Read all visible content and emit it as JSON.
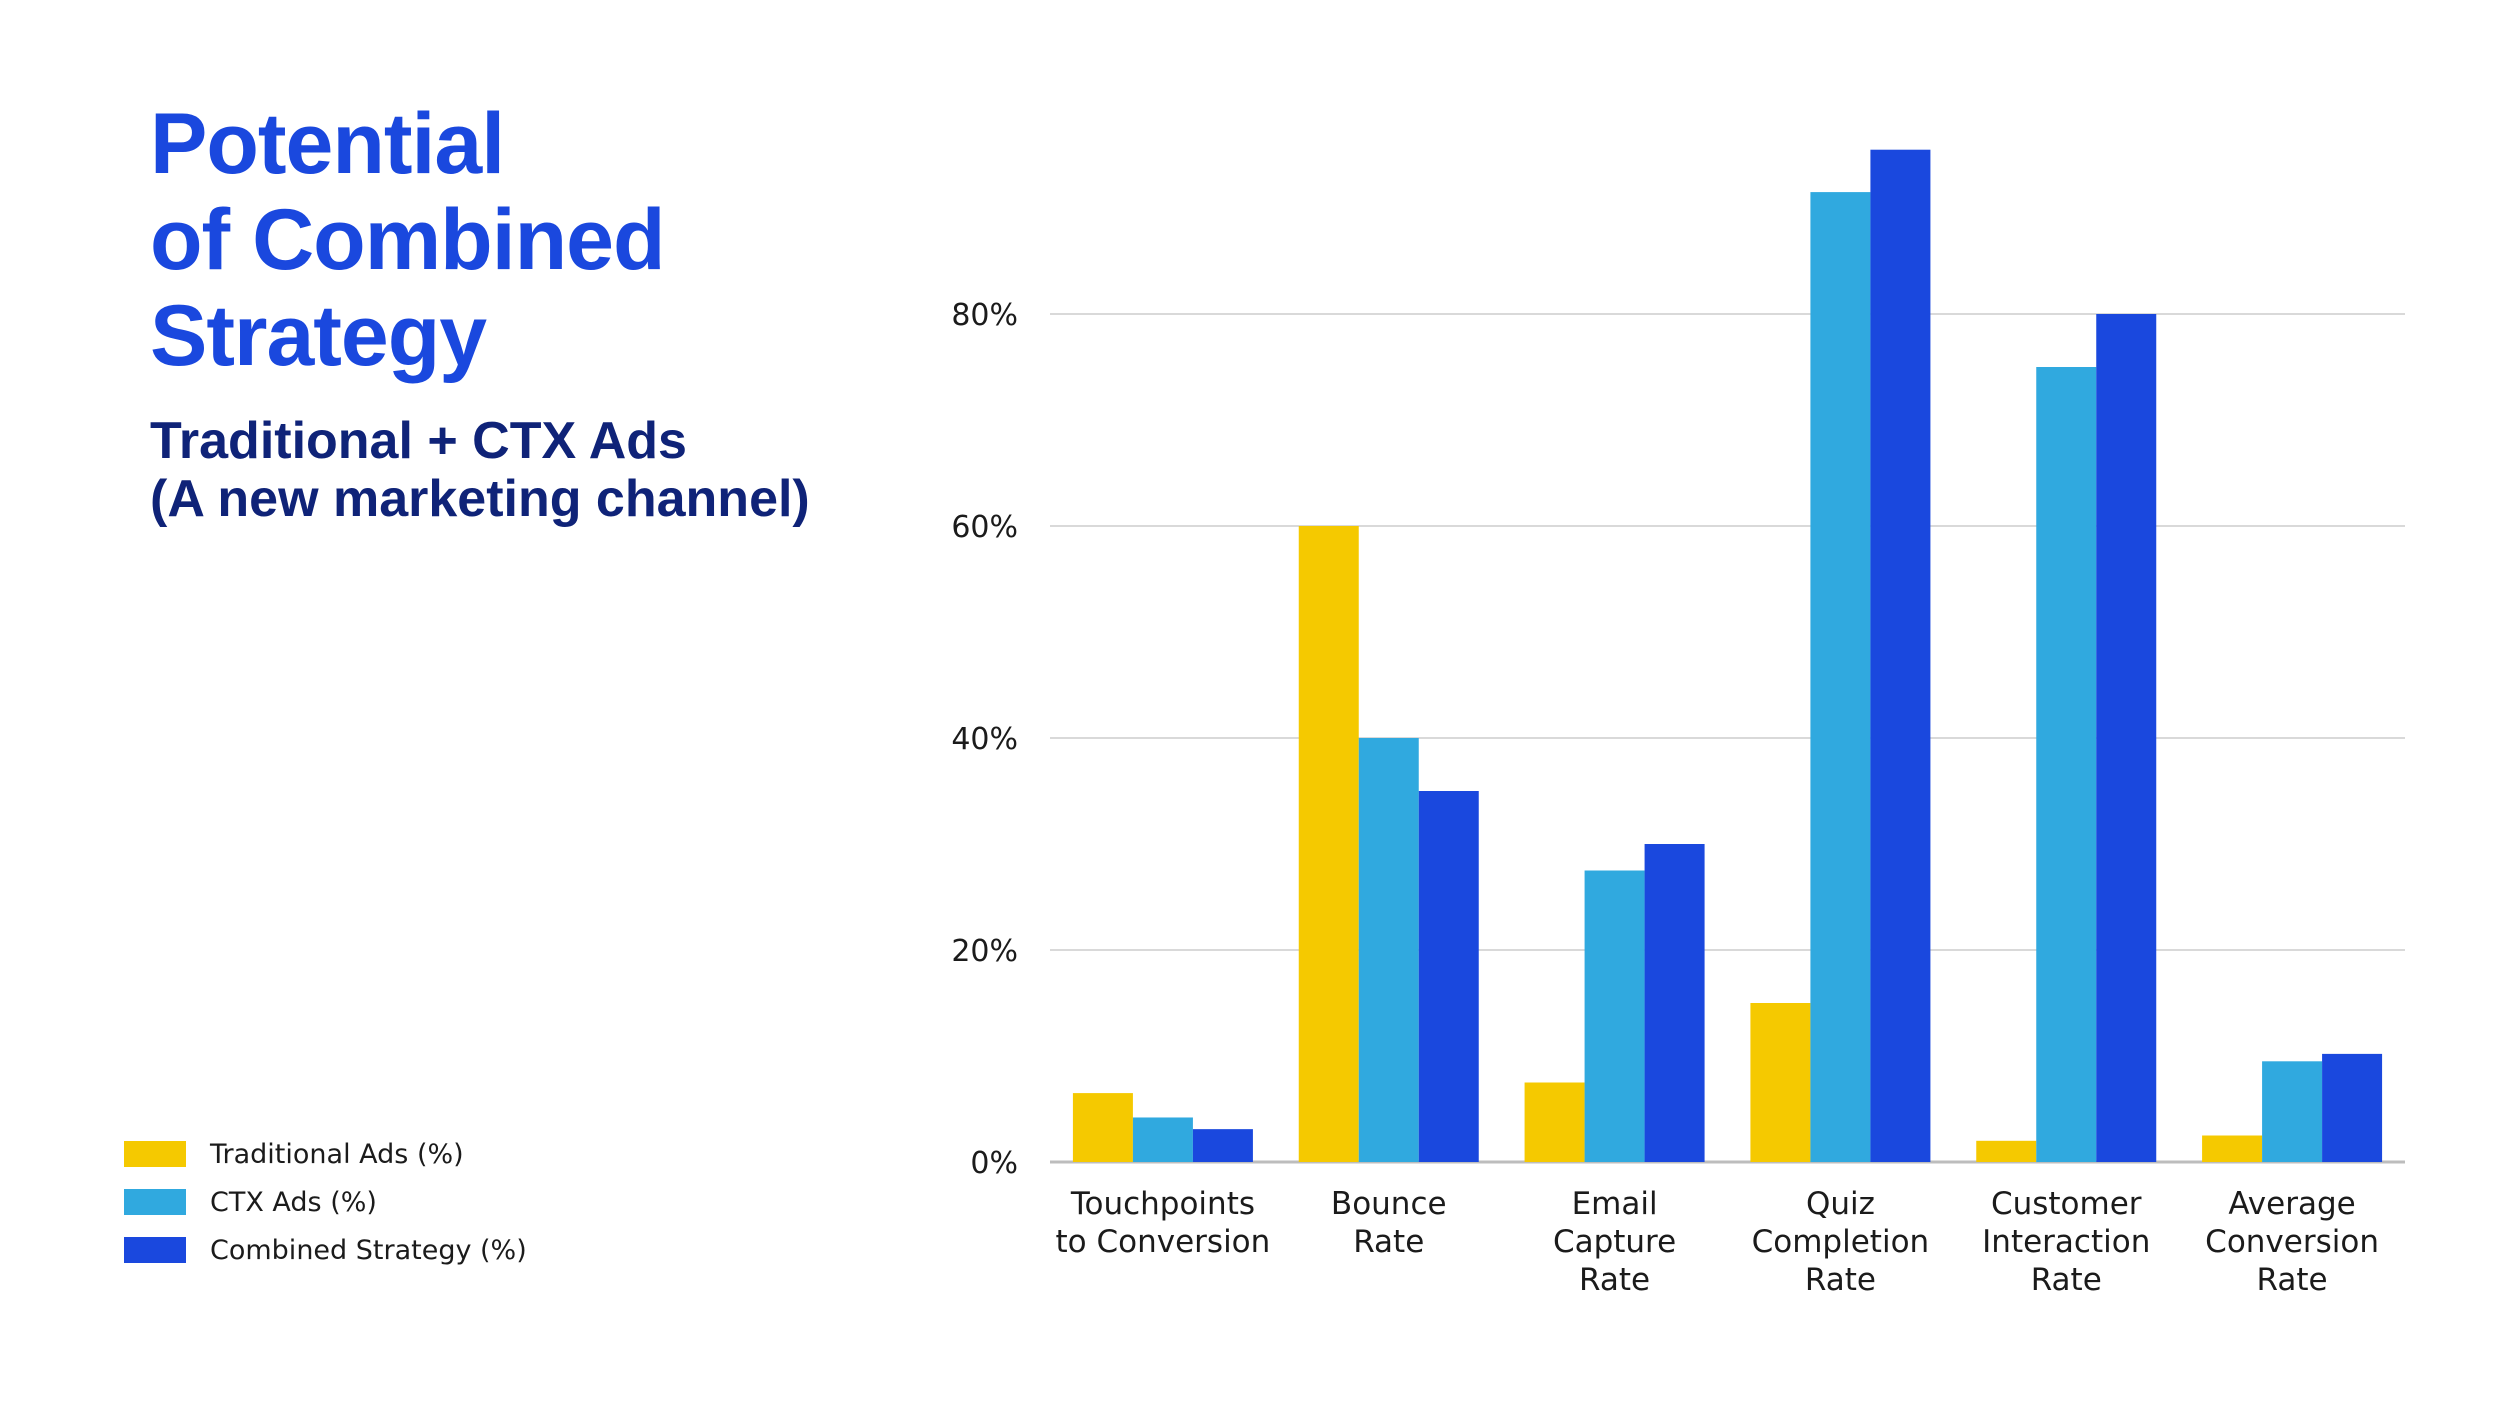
{
  "title": {
    "lines": [
      "Potential",
      "of Combined",
      "Strategy"
    ]
  },
  "subtitle": {
    "lines": [
      "Traditional + CTX Ads",
      "(A new marketing channel)"
    ]
  },
  "colors": {
    "traditional": "#f5c900",
    "ctx": "#30a9df",
    "combined": "#1a48de",
    "title": "#1a48de",
    "subtitle": "#0f2378",
    "grid": "#d9d9d9"
  },
  "legend": [
    {
      "label": "Traditional Ads (%)",
      "color": "#f5c900"
    },
    {
      "label": "CTX Ads (%)",
      "color": "#30a9df"
    },
    {
      "label": "Combined Strategy (%)",
      "color": "#1a48de"
    }
  ],
  "chart_data": {
    "type": "bar",
    "categories": [
      [
        "Touchpoints",
        "to Conversion"
      ],
      [
        "Bounce",
        "Rate"
      ],
      [
        "Email",
        "Capture",
        "Rate"
      ],
      [
        "Quiz",
        "Completion",
        "Rate"
      ],
      [
        "Customer",
        "Interaction",
        "Rate"
      ],
      [
        "Average",
        "Conversion",
        "Rate"
      ]
    ],
    "series": [
      {
        "name": "Traditional Ads (%)",
        "color": "#f5c900",
        "values": [
          6.5,
          60,
          7.5,
          15,
          2,
          2.5
        ]
      },
      {
        "name": "CTX Ads (%)",
        "color": "#30a9df",
        "values": [
          4.2,
          40,
          27.5,
          91.5,
          75,
          9.5
        ]
      },
      {
        "name": "Combined Strategy (%)",
        "color": "#1a48de",
        "values": [
          3.1,
          35,
          30,
          95.5,
          80,
          10.2
        ]
      }
    ],
    "yticks": [
      "0%",
      "20%",
      "40%",
      "60%",
      "80%"
    ],
    "ytick_values": [
      0,
      20,
      40,
      60,
      80
    ],
    "ylim": [
      0,
      100
    ],
    "grid": true,
    "legend_position": "bottom-left"
  }
}
